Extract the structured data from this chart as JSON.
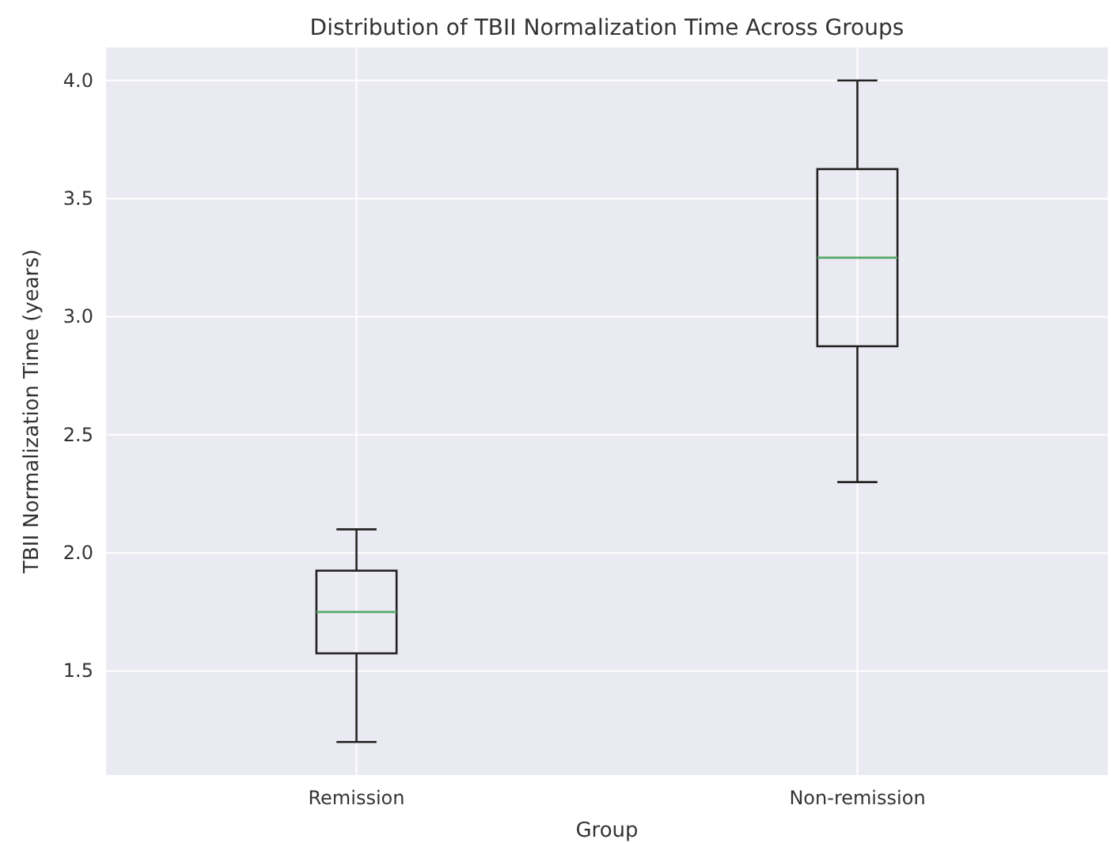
{
  "chart_data": {
    "type": "box",
    "title": "Distribution of TBII Normalization Time Across Groups",
    "xlabel": "Group",
    "ylabel": "TBII Normalization Time (years)",
    "categories": [
      "Remission",
      "Non-remission"
    ],
    "boxes": [
      {
        "low": 1.2,
        "q1": 1.575,
        "median": 1.75,
        "q3": 1.925,
        "high": 2.1
      },
      {
        "low": 2.3,
        "q1": 2.875,
        "median": 3.25,
        "q3": 3.625,
        "high": 4.0
      }
    ],
    "ylim": [
      1.06,
      4.14
    ],
    "yticks": [
      1.5,
      {
        "value": 2,
        "label": "2.0"
      },
      2.5,
      {
        "value": 3,
        "label": "3.0"
      },
      3.5,
      {
        "value": 4,
        "label": "4.0"
      }
    ],
    "grid": true
  }
}
